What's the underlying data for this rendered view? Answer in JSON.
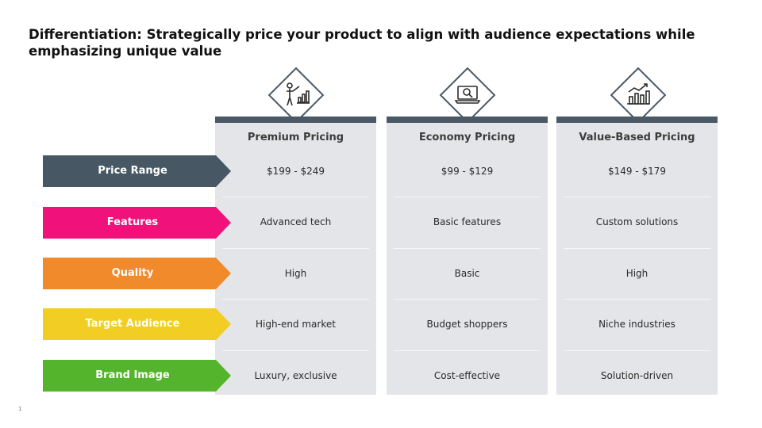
{
  "slide": {
    "title": "Differentiation: Strategically price your product to align with audience expectations while emphasizing unique value",
    "page_number": "1"
  },
  "rows": [
    {
      "label": "Price Range",
      "color": "#475864"
    },
    {
      "label": "Features",
      "color": "#f0117a"
    },
    {
      "label": "Quality",
      "color": "#f08a2a"
    },
    {
      "label": "Target Audience",
      "color": "#f2cd24"
    },
    {
      "label": "Brand Image",
      "color": "#54b52c"
    }
  ],
  "columns": [
    {
      "title": "Premium Pricing",
      "icon": "presenter-chart-icon",
      "values": [
        "$199 - $249",
        "Advanced tech",
        "High",
        "High-end market",
        "Luxury, exclusive"
      ]
    },
    {
      "title": "Economy Pricing",
      "icon": "laptop-search-icon",
      "values": [
        "$99 - $129",
        "Basic features",
        "Basic",
        "Budget shoppers",
        "Cost-effective"
      ]
    },
    {
      "title": "Value-Based Pricing",
      "icon": "bar-chart-growth-icon",
      "values": [
        "$149 - $179",
        "Custom solutions",
        "High",
        "Niche industries",
        "Solution-driven"
      ]
    }
  ],
  "colors": {
    "column_header_bar": "#4a5966",
    "column_background": "#e4e5e8"
  }
}
